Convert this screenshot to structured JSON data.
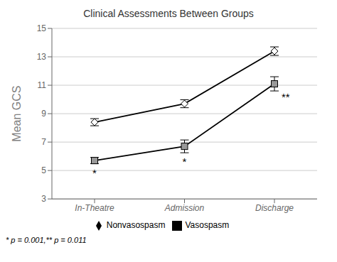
{
  "chart_data": {
    "type": "line",
    "title": "Clinical Assessments Between Groups",
    "ylabel": "Mean GCS",
    "categories": [
      "In-Theatre",
      "Admission",
      "Discharge"
    ],
    "color": "#000000",
    "series": [
      {
        "name": "Nonvasospasm",
        "color": "#ffffff",
        "marker": "diamond",
        "values": [
          8.4,
          9.7,
          13.4
        ],
        "errors": [
          0.25,
          0.28,
          0.3
        ]
      },
      {
        "name": "Vasospasm",
        "color": "#999999",
        "marker": "square",
        "values": [
          5.7,
          6.7,
          11.1
        ],
        "errors": [
          0.22,
          0.45,
          0.5
        ]
      }
    ],
    "ylim": [
      3,
      15
    ],
    "yticks": [
      3,
      5,
      7,
      9,
      11,
      13,
      15
    ],
    "grid": true,
    "legend": "bottom",
    "annotations": [
      {
        "text": "*",
        "x": "In-Theatre",
        "series": "Vasospasm"
      },
      {
        "text": "*",
        "x": "Admission",
        "series": "Vasospasm"
      },
      {
        "text": "**",
        "x": "Discharge",
        "series": "Vasospasm"
      },
      {
        "text": "* p = 0.001,** p = 0.011"
      }
    ]
  }
}
